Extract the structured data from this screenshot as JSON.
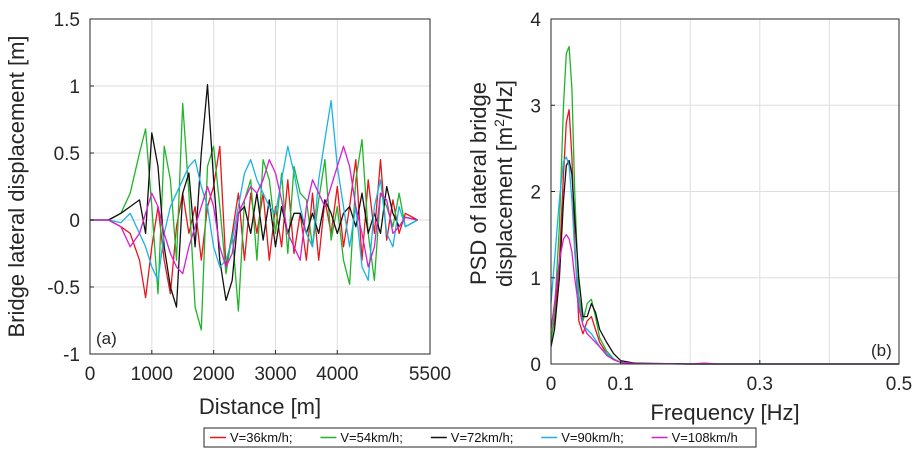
{
  "chart_data": [
    {
      "panel": "(a)",
      "type": "line",
      "xlabel": "Distance [m]",
      "ylabel": "Bridge lateral displacement [m]",
      "xlim": [
        0,
        5500
      ],
      "ylim": [
        -1,
        1.5
      ],
      "xticks": [
        "0",
        "1000",
        "2000",
        "3000",
        "4000",
        "5500"
      ],
      "xtick_values": [
        0,
        1000,
        2000,
        3000,
        4000,
        5500
      ],
      "yticks": [
        "-1",
        "-0.5",
        "0",
        "0.5",
        "1",
        "1.5"
      ],
      "ytick_values": [
        -1,
        -0.5,
        0,
        0.5,
        1,
        1.5
      ],
      "grid": true,
      "series": [
        {
          "name": "V=36km/h;",
          "color": "#e8161b",
          "x": [
            0,
            300,
            500,
            650,
            800,
            900,
            1000,
            1100,
            1200,
            1300,
            1400,
            1500,
            1600,
            1700,
            1800,
            1900,
            2000,
            2100,
            2200,
            2300,
            2400,
            2500,
            2600,
            2700,
            2800,
            2900,
            3000,
            3100,
            3200,
            3300,
            3400,
            3500,
            3600,
            3700,
            3800,
            3900,
            4000,
            4100,
            4200,
            4300,
            4400,
            4500,
            4600,
            4700,
            4800,
            4900,
            5000,
            5100,
            5300
          ],
          "y": [
            0,
            0,
            -0.05,
            -0.1,
            -0.3,
            -0.58,
            -0.2,
            0.1,
            -0.3,
            -0.55,
            -0.05,
            0.2,
            -0.1,
            0.1,
            -0.3,
            0.1,
            0.25,
            0.55,
            -0.35,
            -0.1,
            0.2,
            -0.3,
            0.2,
            -0.1,
            0.2,
            -0.3,
            0.1,
            -0.2,
            0.3,
            -0.25,
            0.05,
            -0.3,
            0.2,
            -0.3,
            0.15,
            -0.1,
            0.25,
            -0.2,
            0.1,
            0.45,
            -0.3,
            0.3,
            -0.1,
            0.45,
            -0.15,
            0.15,
            -0.1,
            0.05,
            0
          ]
        },
        {
          "name": "V=54km/h;",
          "color": "#1fb52a",
          "x": [
            0,
            300,
            500,
            650,
            800,
            900,
            1000,
            1100,
            1200,
            1300,
            1400,
            1500,
            1600,
            1700,
            1800,
            1900,
            2000,
            2100,
            2200,
            2300,
            2400,
            2500,
            2600,
            2700,
            2800,
            2900,
            3000,
            3100,
            3200,
            3300,
            3400,
            3500,
            3600,
            3700,
            3800,
            3900,
            4000,
            4100,
            4200,
            4300,
            4400,
            4500,
            4600,
            4700,
            4800,
            4900,
            5000,
            5100,
            5300
          ],
          "y": [
            0,
            0,
            0.05,
            0.2,
            0.5,
            0.68,
            0.1,
            -0.55,
            0.55,
            0.3,
            -0.3,
            0.87,
            0.2,
            -0.65,
            -0.82,
            0.4,
            0.55,
            0.1,
            -0.4,
            -0.1,
            -0.68,
            0.15,
            0.3,
            -0.3,
            0.45,
            0.3,
            -0.1,
            0.35,
            -0.25,
            0.4,
            0.2,
            0.15,
            -0.2,
            0.15,
            0.45,
            -0.15,
            0.1,
            -0.3,
            -0.48,
            0.3,
            0.6,
            -0.1,
            -0.45,
            0.2,
            0.1,
            -0.05,
            0.2,
            -0.05,
            0
          ]
        },
        {
          "name": "V=72km/h;",
          "color": "#111111",
          "x": [
            0,
            300,
            500,
            650,
            800,
            900,
            1000,
            1100,
            1200,
            1300,
            1400,
            1500,
            1600,
            1700,
            1800,
            1900,
            2000,
            2100,
            2200,
            2300,
            2400,
            2500,
            2600,
            2700,
            2800,
            2900,
            3000,
            3100,
            3200,
            3300,
            3400,
            3500,
            3600,
            3700,
            3800,
            3900,
            4000,
            4100,
            4200,
            4300,
            4400,
            4500,
            4600,
            4700,
            4800,
            4900,
            5000,
            5100,
            5300
          ],
          "y": [
            0,
            0,
            0.05,
            0.1,
            0.15,
            -0.1,
            0.65,
            0.4,
            -0.2,
            -0.5,
            -0.65,
            0.2,
            0.35,
            -0.2,
            0.5,
            1.01,
            0.3,
            -0.3,
            -0.6,
            -0.45,
            0.05,
            0.1,
            -0.1,
            0.2,
            -0.15,
            0.15,
            -0.2,
            0.1,
            -0.1,
            0.05,
            0.05,
            -0.1,
            0.05,
            -0.1,
            0.15,
            0.05,
            -0.1,
            0.05,
            0.1,
            -0.05,
            0.2,
            -0.1,
            0.05,
            -0.1,
            0.25,
            0.05,
            -0.05,
            0.02,
            0
          ]
        },
        {
          "name": "V=90km/h;",
          "color": "#1ab3e6",
          "x": [
            0,
            300,
            500,
            650,
            800,
            900,
            1000,
            1100,
            1200,
            1300,
            1400,
            1500,
            1600,
            1700,
            1800,
            1900,
            2000,
            2100,
            2200,
            2300,
            2400,
            2500,
            2600,
            2700,
            2800,
            2900,
            3000,
            3100,
            3200,
            3300,
            3400,
            3500,
            3600,
            3700,
            3800,
            3900,
            4000,
            4100,
            4200,
            4300,
            4400,
            4500,
            4600,
            4700,
            4800,
            4900,
            5000,
            5100,
            5300
          ],
          "y": [
            0,
            0,
            -0.02,
            0.05,
            -0.1,
            -0.2,
            -0.35,
            -0.45,
            -0.1,
            0.1,
            0.2,
            0.3,
            0.4,
            0.45,
            0.25,
            0.1,
            -0.2,
            -0.35,
            -0.3,
            -0.15,
            0.1,
            0.35,
            0.45,
            0.3,
            0.2,
            0.1,
            0.05,
            0.3,
            0.55,
            0.35,
            0.1,
            -0.1,
            -0.2,
            0.3,
            0.6,
            0.89,
            0.4,
            0.1,
            -0.2,
            0.1,
            -0.35,
            -0.45,
            0.1,
            0.3,
            -0.1,
            -0.2,
            0.1,
            -0.05,
            0
          ]
        },
        {
          "name": "V=108km/h",
          "color": "#d61fd1",
          "x": [
            0,
            300,
            500,
            650,
            800,
            900,
            1000,
            1100,
            1200,
            1300,
            1400,
            1500,
            1600,
            1700,
            1800,
            1900,
            2000,
            2100,
            2200,
            2300,
            2400,
            2500,
            2600,
            2700,
            2800,
            2900,
            3000,
            3100,
            3200,
            3300,
            3400,
            3500,
            3600,
            3700,
            3800,
            3900,
            4000,
            4100,
            4200,
            4300,
            4400,
            4500,
            4600,
            4700,
            4800,
            4900,
            5000,
            5100,
            5300
          ],
          "y": [
            0,
            0,
            -0.05,
            -0.2,
            -0.1,
            0.05,
            0.2,
            0.1,
            -0.1,
            -0.25,
            -0.35,
            -0.4,
            -0.2,
            -0.05,
            0.1,
            0.25,
            0.1,
            -0.2,
            -0.35,
            -0.25,
            0.05,
            0.15,
            0.25,
            0.2,
            0.3,
            0.45,
            0.35,
            0.15,
            -0.1,
            -0.2,
            -0.3,
            0.1,
            0.3,
            0.2,
            0.1,
            0.25,
            0.4,
            0.55,
            0.4,
            0.1,
            -0.1,
            -0.35,
            -0.2,
            0.2,
            0.15,
            -0.1,
            -0.05,
            0.02,
            0
          ]
        }
      ],
      "legend": "bottom"
    },
    {
      "panel": "(b)",
      "type": "line",
      "xlabel": "Frequency [Hz]",
      "ylabel_line1": "PSD of lateral bridge",
      "ylabel_line2_pre": "displacement [m",
      "ylabel_line2_sup": "2",
      "ylabel_line2_post": "/Hz]",
      "xlim": [
        0,
        0.5
      ],
      "ylim": [
        0,
        4
      ],
      "xticks": [
        "0",
        "0.1",
        "0.3",
        "0.5"
      ],
      "xtick_values": [
        0,
        0.1,
        0.3,
        0.5
      ],
      "grid_x": [
        0,
        0.1,
        0.2,
        0.3,
        0.4,
        0.5
      ],
      "yticks": [
        "0",
        "1",
        "2",
        "3",
        "4"
      ],
      "ytick_values": [
        0,
        1,
        2,
        3,
        4
      ],
      "grid": true,
      "series": [
        {
          "name": "V=36km/h;",
          "color": "#e8161b",
          "x": [
            0,
            0.005,
            0.012,
            0.018,
            0.022,
            0.026,
            0.03,
            0.034,
            0.04,
            0.046,
            0.052,
            0.058,
            0.064,
            0.07,
            0.08,
            0.09,
            0.1,
            0.12,
            0.2,
            0.5
          ],
          "y": [
            0.3,
            0.5,
            1.2,
            2.2,
            2.8,
            2.95,
            2.4,
            1.4,
            0.5,
            0.35,
            0.5,
            0.55,
            0.4,
            0.25,
            0.12,
            0.05,
            0.02,
            0.005,
            0,
            0
          ]
        },
        {
          "name": "V=54km/h;",
          "color": "#1fb52a",
          "x": [
            0,
            0.005,
            0.012,
            0.018,
            0.022,
            0.026,
            0.03,
            0.034,
            0.04,
            0.046,
            0.052,
            0.058,
            0.064,
            0.07,
            0.08,
            0.09,
            0.1,
            0.12,
            0.2,
            0.5
          ],
          "y": [
            0.25,
            0.6,
            1.6,
            3.0,
            3.6,
            3.68,
            3.2,
            2.0,
            0.8,
            0.5,
            0.7,
            0.75,
            0.55,
            0.3,
            0.15,
            0.06,
            0.02,
            0.005,
            0,
            0
          ]
        },
        {
          "name": "V=72km/h;",
          "color": "#111111",
          "x": [
            0,
            0.005,
            0.012,
            0.018,
            0.022,
            0.026,
            0.03,
            0.034,
            0.04,
            0.046,
            0.052,
            0.058,
            0.064,
            0.07,
            0.08,
            0.09,
            0.1,
            0.12,
            0.2,
            0.5
          ],
          "y": [
            0.2,
            0.4,
            1.0,
            1.9,
            2.3,
            2.36,
            2.2,
            1.7,
            1.0,
            0.55,
            0.55,
            0.7,
            0.6,
            0.4,
            0.25,
            0.12,
            0.04,
            0.01,
            0,
            0
          ]
        },
        {
          "name": "V=90km/h;",
          "color": "#1ab3e6",
          "x": [
            0,
            0.005,
            0.012,
            0.018,
            0.022,
            0.026,
            0.03,
            0.034,
            0.04,
            0.046,
            0.052,
            0.058,
            0.064,
            0.07,
            0.08,
            0.09,
            0.1,
            0.12,
            0.2,
            0.5
          ],
          "y": [
            0.7,
            1.2,
            1.9,
            2.35,
            2.4,
            2.3,
            1.9,
            1.3,
            0.7,
            0.45,
            0.4,
            0.35,
            0.28,
            0.2,
            0.12,
            0.05,
            0.02,
            0.005,
            0,
            0
          ]
        },
        {
          "name": "V=108km/h",
          "color": "#d61fd1",
          "x": [
            0,
            0.005,
            0.012,
            0.018,
            0.022,
            0.026,
            0.03,
            0.034,
            0.04,
            0.046,
            0.052,
            0.058,
            0.064,
            0.07,
            0.08,
            0.09,
            0.1,
            0.12,
            0.2,
            0.22,
            0.24,
            0.5
          ],
          "y": [
            0.4,
            0.7,
            1.2,
            1.45,
            1.5,
            1.45,
            1.3,
            1.0,
            0.65,
            0.45,
            0.35,
            0.3,
            0.25,
            0.2,
            0.1,
            0.05,
            0.02,
            0.005,
            0,
            0.01,
            0,
            0
          ]
        }
      ]
    }
  ]
}
